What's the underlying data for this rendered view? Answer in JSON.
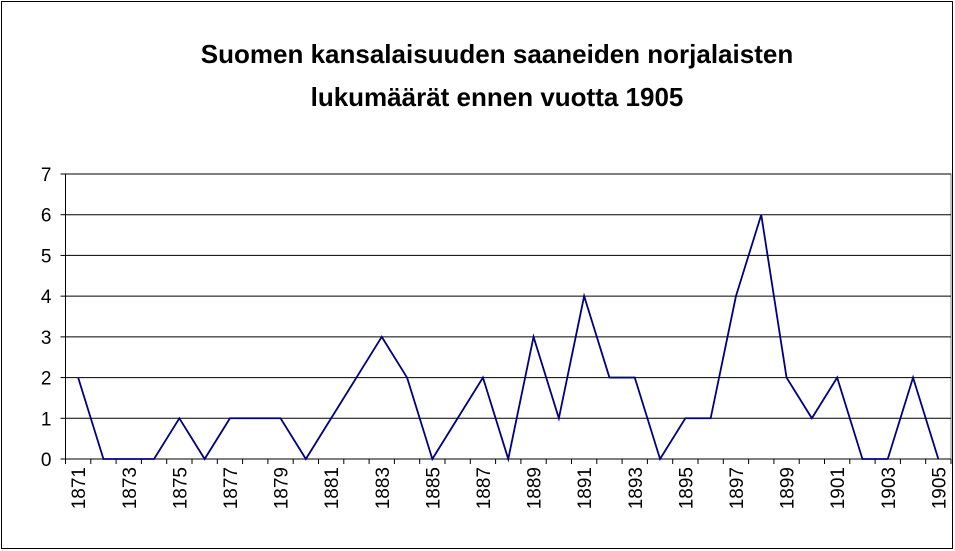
{
  "chart_data": {
    "type": "line",
    "title": [
      "Suomen kansalaisuuden saaneiden norjalaisten",
      "lukumäärät ennen vuotta 1905"
    ],
    "categories": [
      "1871",
      null,
      "1873",
      null,
      "1875",
      null,
      "1877",
      null,
      "1879",
      null,
      "1881",
      null,
      "1883",
      null,
      "1885",
      null,
      "1887",
      null,
      "1889",
      null,
      "1891",
      null,
      "1893",
      null,
      "1895",
      null,
      "1897",
      null,
      "1899",
      null,
      "1901",
      null,
      "1903",
      null,
      "1905"
    ],
    "values": [
      2,
      0,
      0,
      0,
      1,
      0,
      1,
      1,
      1,
      0,
      1,
      2,
      3,
      2,
      0,
      1,
      2,
      0,
      3,
      1,
      4,
      2,
      2,
      0,
      1,
      1,
      4,
      6,
      2,
      1,
      2,
      0,
      0,
      2,
      0
    ],
    "color": "#000080",
    "ylim": [
      0,
      7
    ],
    "yticks": [
      0,
      1,
      2,
      3,
      4,
      5,
      6,
      7
    ],
    "grid": true
  }
}
